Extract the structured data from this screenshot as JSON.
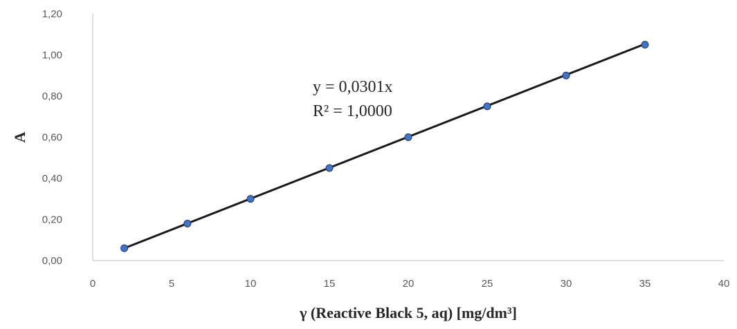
{
  "chart_data": {
    "type": "scatter",
    "title": "",
    "xlabel": "γ (Reactive Black 5, aq) [mg/dm³]",
    "ylabel": "A",
    "xlim": [
      0,
      40
    ],
    "ylim": [
      0,
      1.2
    ],
    "x_ticks": [
      "0",
      "5",
      "10",
      "15",
      "20",
      "25",
      "30",
      "35",
      "40"
    ],
    "y_ticks": [
      "0,00",
      "0,20",
      "0,40",
      "0,60",
      "0,80",
      "1,00",
      "1,20"
    ],
    "grid": false,
    "series": [
      {
        "x": [
          2,
          6,
          10,
          15,
          20,
          25,
          30,
          35
        ],
        "y": [
          0.06,
          0.18,
          0.3,
          0.45,
          0.6,
          0.75,
          0.9,
          1.05
        ]
      }
    ],
    "trendline": {
      "type": "linear",
      "slope": 0.0301,
      "intercept": 0,
      "x_range": [
        2,
        35
      ]
    },
    "annotations": {
      "equation": "y = 0,0301x",
      "r_squared": "R² = 1,0000"
    },
    "colors": {
      "marker_fill": "#4472C4",
      "marker_stroke": "#1F3864",
      "trendline": "#1a1a1a",
      "axis": "#bfbfbf"
    }
  }
}
